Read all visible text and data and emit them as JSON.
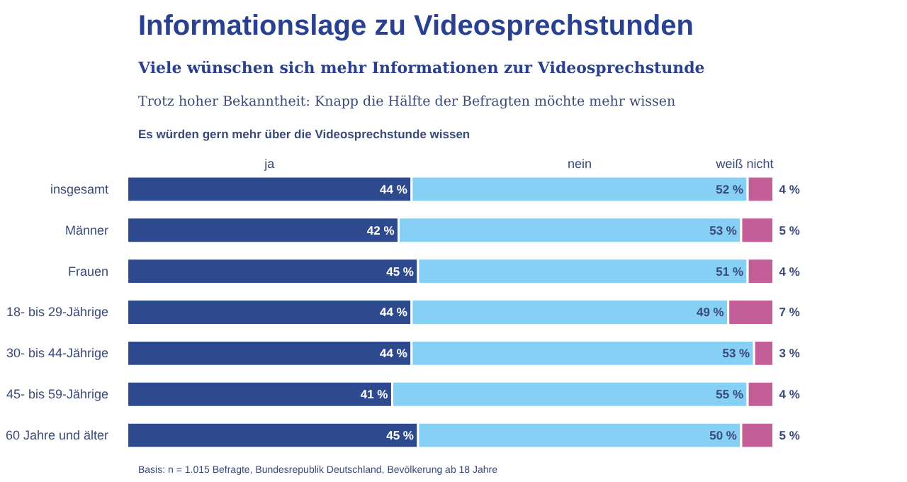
{
  "chart_data": {
    "type": "bar",
    "orientation": "horizontal",
    "stacked": true,
    "legend": "top",
    "grid": false,
    "title": "Informationslage zu Videosprechstunden",
    "subtitle": "Viele wünschen sich mehr Informationen zur Videosprechstunde",
    "annotations": [
      "Trotz hoher Bekanntheit: Knapp die Hälfte der Befragten möchte mehr wissen",
      "Es würden gern mehr über die Videosprechstunde wissen",
      "Basis: n = 1.015 Befragte, Bundesrepublik Deutschland, Bevölkerung ab 18 Jahre"
    ],
    "categories": [
      "insgesamt",
      "Männer",
      "Frauen",
      "18- bis 29-Jährige",
      "30- bis 44-Jährige",
      "45- bis 59-Jährige",
      "60 Jahre und älter"
    ],
    "series": [
      {
        "name": "ja",
        "color": "#2e4a8e",
        "values": [
          44,
          42,
          45,
          44,
          44,
          41,
          45
        ],
        "value_labels": [
          "44 %",
          "42 %",
          "45 %",
          "44 %",
          "44 %",
          "41 %",
          "45 %"
        ]
      },
      {
        "name": "nein",
        "color": "#86cff5",
        "values": [
          52,
          53,
          51,
          49,
          53,
          55,
          50
        ],
        "value_labels": [
          "52 %",
          "53 %",
          "51 %",
          "49 %",
          "53 %",
          "55 %",
          "50 %"
        ]
      },
      {
        "name": "weiß nicht",
        "color": "#c45e98",
        "values": [
          4,
          5,
          4,
          7,
          3,
          4,
          5
        ],
        "value_labels": [
          "4 %",
          "5 %",
          "4 %",
          "7 %",
          "3 %",
          "4 %",
          "5 %"
        ]
      }
    ]
  }
}
